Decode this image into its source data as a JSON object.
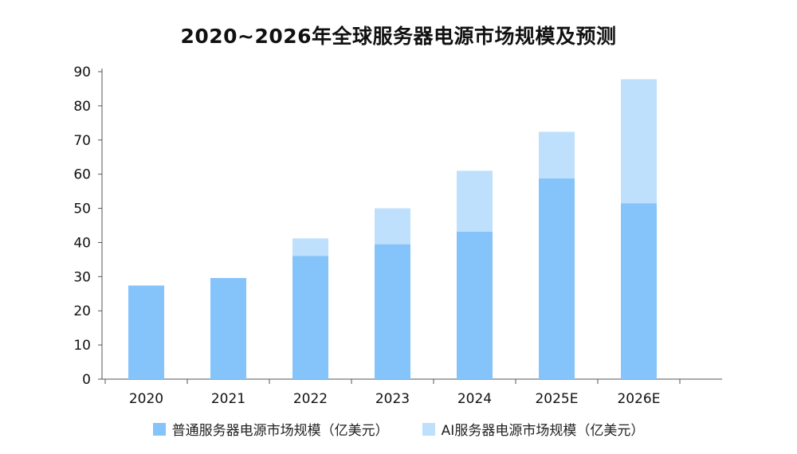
{
  "chart_data": {
    "type": "bar",
    "stacked": true,
    "title": "2020~2026年全球服务器电源市场规模及预测",
    "xlabel": "",
    "ylabel": "",
    "categories": [
      "2020",
      "2021",
      "2022",
      "2023",
      "2024",
      "2025E",
      "2026E"
    ],
    "series": [
      {
        "name": "普通服务器电源市场规模（亿美元）",
        "values": [
          27.4,
          29.6,
          36.1,
          39.5,
          43.2,
          58.8,
          51.5
        ],
        "color": "#85c4fa"
      },
      {
        "name": "AI服务器电源市场规模（亿美元）",
        "values": [
          0,
          0,
          5.1,
          10.5,
          17.8,
          13.6,
          36.3
        ],
        "color": "#bfe0fc"
      }
    ],
    "ylim": [
      0,
      90
    ],
    "yticks": [
      0,
      10,
      20,
      30,
      40,
      50,
      60,
      70,
      80,
      90
    ],
    "grid": false,
    "legend_position": "bottom"
  }
}
